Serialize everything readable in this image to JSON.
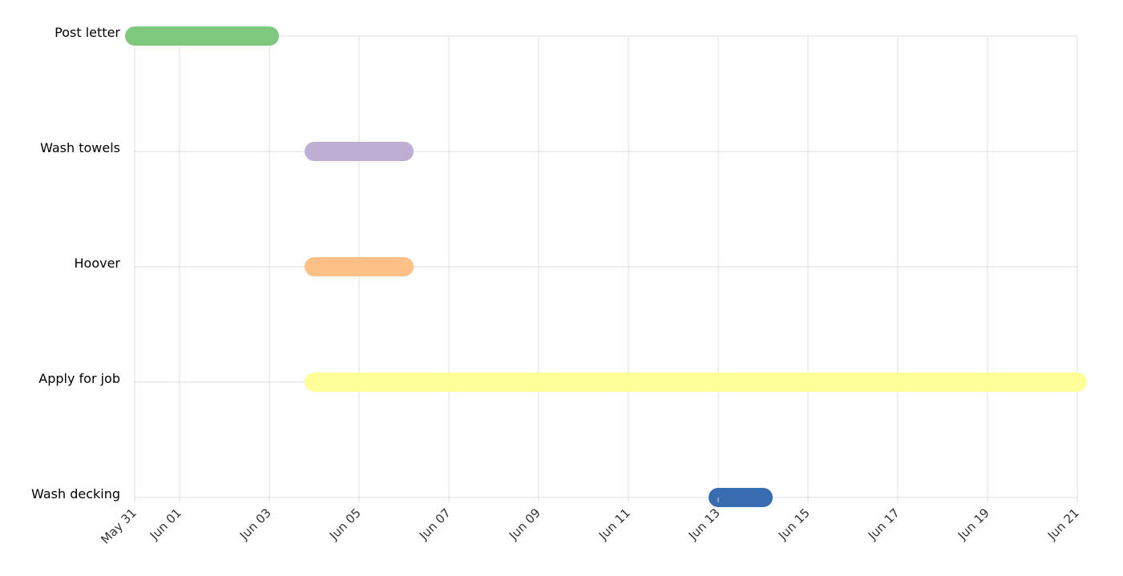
{
  "chart_data": {
    "type": "gantt",
    "x_axis": {
      "type": "date",
      "start": "2020-05-31",
      "end": "2020-06-21",
      "tick_labels": [
        "May 31",
        "Jun 01",
        "Jun 03",
        "Jun 05",
        "Jun 07",
        "Jun 09",
        "Jun 11",
        "Jun 13",
        "Jun 15",
        "Jun 17",
        "Jun 19",
        "Jun 21"
      ],
      "tick_dates": [
        "2020-05-31",
        "2020-06-01",
        "2020-06-03",
        "2020-06-05",
        "2020-06-07",
        "2020-06-09",
        "2020-06-11",
        "2020-06-13",
        "2020-06-15",
        "2020-06-17",
        "2020-06-19",
        "2020-06-21"
      ]
    },
    "grid": true,
    "tasks": [
      {
        "label": "Post letter",
        "start": "2020-05-31",
        "end": "2020-06-03",
        "color": "#7fc97f"
      },
      {
        "label": "Wash towels",
        "start": "2020-06-04",
        "end": "2020-06-06",
        "color": "#beaed4"
      },
      {
        "label": "Hoover",
        "start": "2020-06-04",
        "end": "2020-06-06",
        "color": "#fdc086"
      },
      {
        "label": "Apply for job",
        "start": "2020-06-04",
        "end": "2020-06-21",
        "color": "#ffff99"
      },
      {
        "label": "Wash decking",
        "start": "2020-06-13",
        "end": "2020-06-14",
        "color": "#386cb0"
      }
    ]
  }
}
